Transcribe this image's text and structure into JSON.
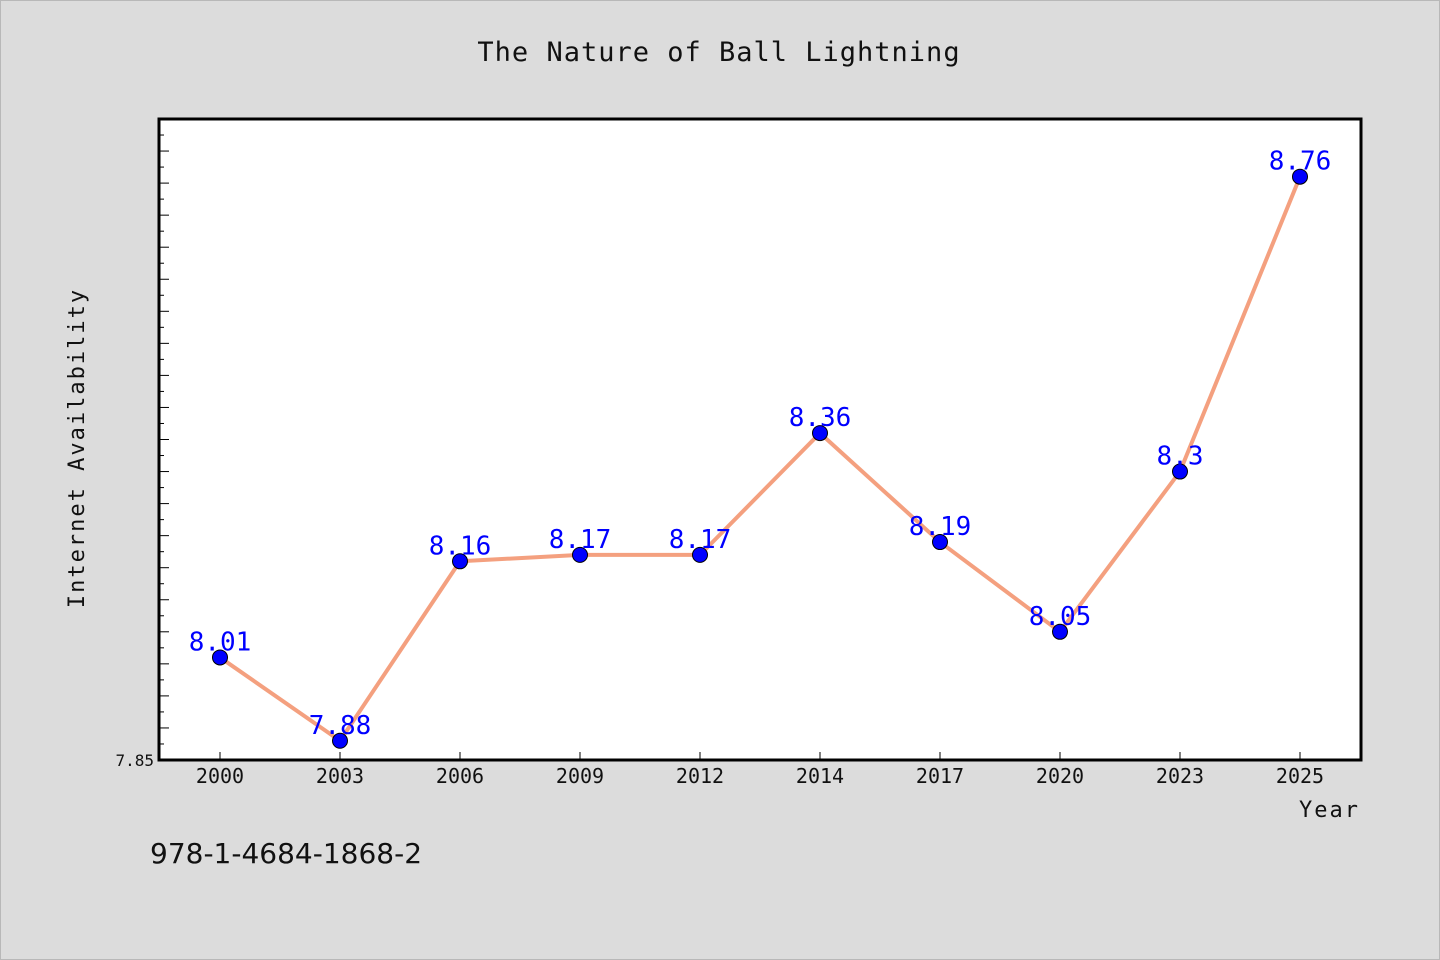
{
  "chart_data": {
    "type": "line",
    "title": "The Nature of Ball Lightning",
    "xlabel": "Year",
    "ylabel": "Internet Availability",
    "categories": [
      "2000",
      "2003",
      "2006",
      "2009",
      "2012",
      "2014",
      "2017",
      "2020",
      "2023",
      "2025"
    ],
    "series": [
      {
        "values": [
          8.01,
          7.88,
          8.16,
          8.17,
          8.17,
          8.36,
          8.19,
          8.05,
          8.3,
          8.76
        ],
        "data_labels": [
          "8.01",
          "7.88",
          "8.16",
          "8.17",
          "8.17",
          "8.36",
          "8.19",
          "8.05",
          "8.3",
          "8.76"
        ]
      }
    ],
    "ylim": [
      7.85,
      8.85
    ],
    "y_tick_labels": [
      "7.85"
    ],
    "grid": false,
    "line_color": "#f4a07f",
    "marker_color": "#0000ff",
    "label_color": "#0000ff"
  },
  "annotation": {
    "isbn": "978-1-4684-1868-2"
  }
}
